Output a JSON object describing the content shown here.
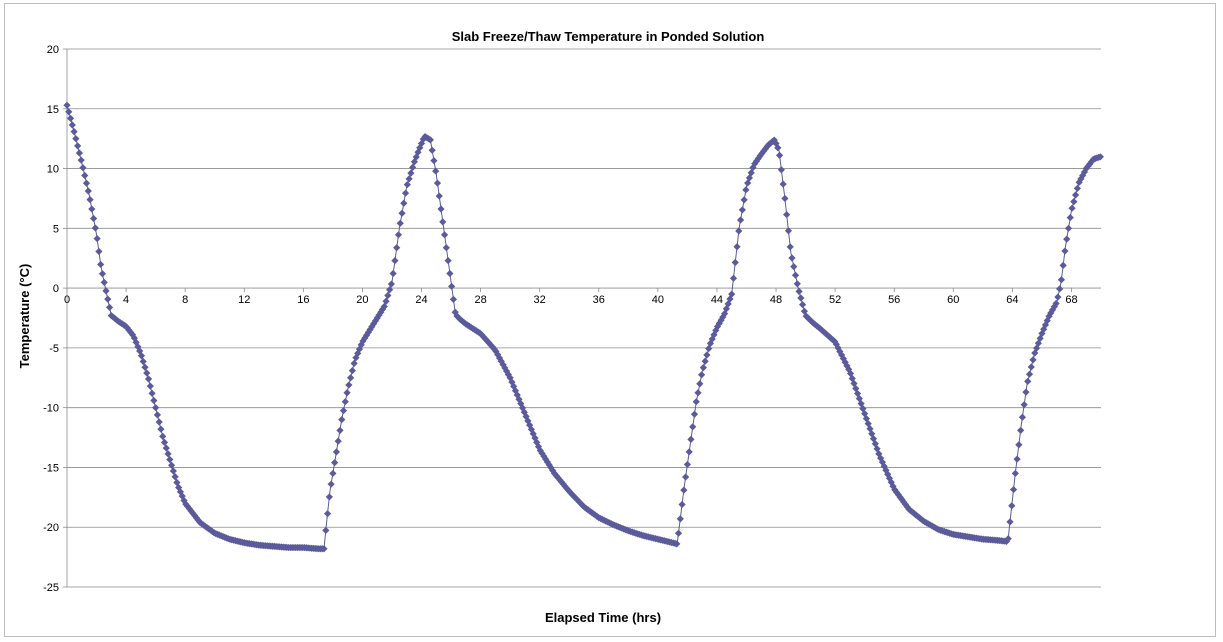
{
  "chart_data": {
    "type": "scatter",
    "title": "Slab Freeze/Thaw Temperature in Ponded Solution",
    "xlabel": "Elapsed Time (hrs)",
    "ylabel": "Temperature (°C)",
    "xlim": [
      0,
      70
    ],
    "ylim": [
      -25,
      20
    ],
    "xticks": [
      0,
      4,
      8,
      12,
      16,
      20,
      24,
      28,
      32,
      36,
      40,
      44,
      48,
      52,
      56,
      60,
      64,
      68
    ],
    "yticks": [
      -25,
      -20,
      -15,
      -10,
      -5,
      0,
      5,
      10,
      15,
      20
    ],
    "grid": "horizontal",
    "legend": "none",
    "marker": "diamond",
    "series_color": "#5b5b9b",
    "sample_interval_hrs": 0.12,
    "series": [
      {
        "x": [
          0,
          0.5,
          1.0,
          1.5,
          2.0,
          2.3,
          2.6,
          3.0,
          3.5,
          4.0,
          4.5,
          5.0,
          5.5,
          6.0,
          6.5,
          7.0,
          7.5,
          8.0,
          9.0,
          10.0,
          11.0,
          12.0,
          13.0,
          14.0,
          15.0,
          16.0,
          17.0,
          17.4,
          17.5,
          17.8,
          18.2,
          18.6,
          19.0,
          19.5,
          20.0,
          20.5,
          21.0,
          21.5,
          22.0,
          22.5,
          23.0,
          23.5,
          23.8,
          24.2,
          24.6,
          25.0,
          25.5,
          26.0,
          26.3,
          26.6,
          27.0,
          28.0,
          29.0,
          30.0,
          31.0,
          32.0,
          33.0,
          34.0,
          35.0,
          36.0,
          37.0,
          38.0,
          39.0,
          40.0,
          41.0,
          41.3,
          41.4,
          41.8,
          42.2,
          42.6,
          43.0,
          43.5,
          44.0,
          44.5,
          45.0,
          45.5,
          46.0,
          46.5,
          47.0,
          47.5,
          47.9,
          48.2,
          48.6,
          49.0,
          49.5,
          50.0,
          50.5,
          51.0,
          52.0,
          53.0,
          54.0,
          55.0,
          56.0,
          57.0,
          58.0,
          59.0,
          60.0,
          61.0,
          62.0,
          63.0,
          63.7,
          63.8,
          64.2,
          64.6,
          65.0,
          65.5,
          66.0,
          66.5,
          67.0,
          67.3,
          67.6,
          68.0,
          68.5,
          69.0,
          69.5,
          70.0
        ],
        "values": [
          15.3,
          13.0,
          10.5,
          7.8,
          4.5,
          1.8,
          0.0,
          -2.3,
          -2.8,
          -3.2,
          -4.0,
          -5.5,
          -7.5,
          -10.0,
          -12.5,
          -14.5,
          -16.5,
          -18.0,
          -19.6,
          -20.5,
          -21.0,
          -21.3,
          -21.5,
          -21.6,
          -21.7,
          -21.7,
          -21.8,
          -21.8,
          -20.5,
          -17.0,
          -14.0,
          -11.0,
          -8.5,
          -6.0,
          -4.5,
          -3.5,
          -2.5,
          -1.5,
          0.5,
          5.0,
          8.5,
          10.5,
          11.5,
          12.7,
          12.4,
          9.5,
          5.0,
          0.5,
          -2.2,
          -2.6,
          -3.0,
          -3.8,
          -5.2,
          -7.5,
          -10.5,
          -13.5,
          -15.5,
          -17.0,
          -18.3,
          -19.2,
          -19.8,
          -20.3,
          -20.7,
          -21.0,
          -21.3,
          -21.4,
          -20.5,
          -16.5,
          -13.0,
          -9.5,
          -7.0,
          -4.8,
          -3.3,
          -2.2,
          -0.5,
          5.0,
          8.5,
          10.3,
          11.2,
          12.0,
          12.4,
          11.5,
          7.5,
          3.0,
          0.0,
          -2.3,
          -2.9,
          -3.4,
          -4.5,
          -7.0,
          -10.5,
          -14.0,
          -16.8,
          -18.5,
          -19.5,
          -20.2,
          -20.6,
          -20.8,
          -21.0,
          -21.1,
          -21.2,
          -20.0,
          -15.5,
          -11.5,
          -8.0,
          -5.5,
          -3.8,
          -2.3,
          -1.2,
          0.5,
          3.5,
          6.5,
          8.8,
          10.0,
          10.8,
          11.0
        ]
      }
    ]
  }
}
